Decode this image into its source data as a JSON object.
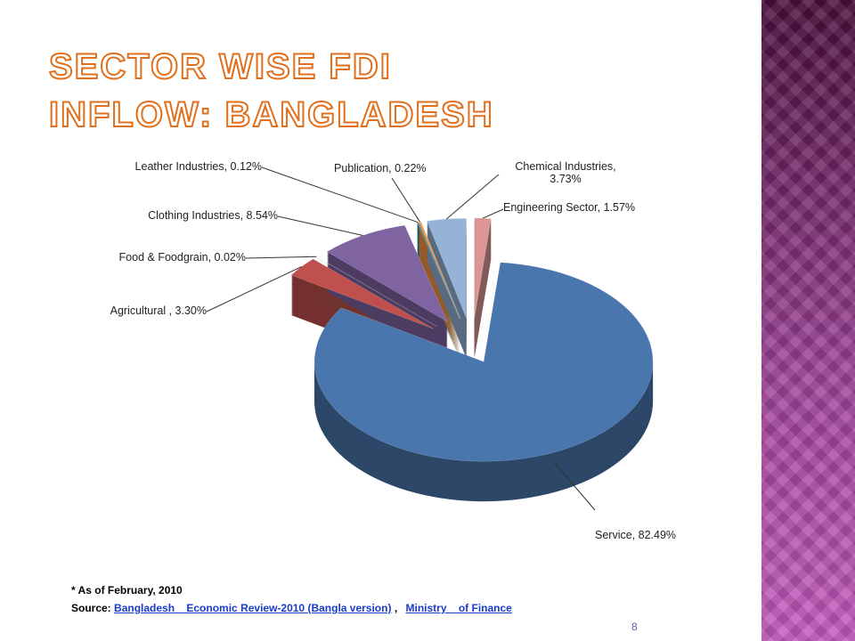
{
  "chart_data": {
    "type": "pie",
    "title": "SECTOR WISE FDI INFLOW: BANGLADESH",
    "values": [
      1.57,
      82.49,
      3.3,
      0.02,
      8.54,
      0.12,
      0.22,
      3.73
    ],
    "value_labels": [
      "Engineering Sector, 1.57%",
      "Service, 82.49%",
      "Agricultural , 3.30%",
      "Food &  Foodgrain, 0.02%",
      "Clothing Industries, 8.54%",
      "Leather Industries, 0.12%",
      "Publication, 0.22%",
      "Chemical Industries, 3.73%"
    ],
    "colors": [
      "#d99694",
      "#4a76ae",
      "#c0504d",
      "#9bbb59",
      "#8064a2",
      "#2c8a9c",
      "#f79646",
      "#95b3d7"
    ]
  },
  "footnote": {
    "note": "* As of February, 2010",
    "source_label": "Source:",
    "source_link": "Bangladesh    Economic Review-2010 (Bangla version)",
    "separator": ",",
    "ministry_link": "Ministry    of Finance"
  },
  "page_number": "8"
}
